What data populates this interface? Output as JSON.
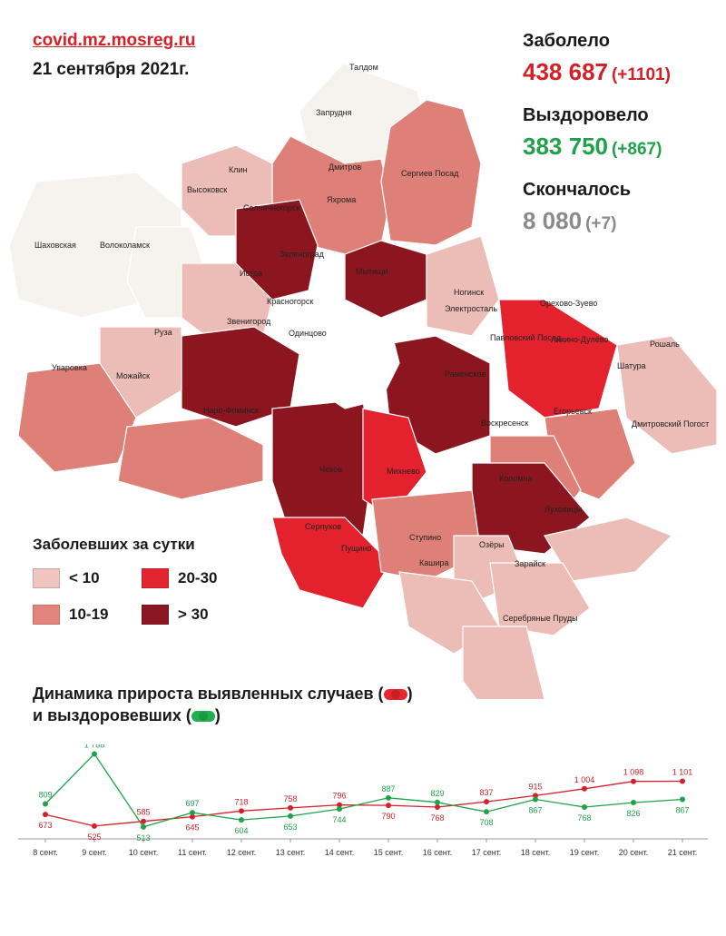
{
  "header": {
    "site": "covid.mz.mosreg.ru",
    "date": "21 сентября 2021г."
  },
  "stats": {
    "infected": {
      "label": "Заболело",
      "value": "438 687",
      "delta": "(+1101)",
      "color": "#d42027"
    },
    "recovered": {
      "label": "Выздоровело",
      "value": "383 750",
      "delta": "(+867)",
      "color": "#1fa24a"
    },
    "died": {
      "label": "Скончалось",
      "value": "8 080",
      "delta": "(+7)",
      "color": "#8a8a8a"
    }
  },
  "legend": {
    "title": "Заболевших за сутки",
    "items": [
      {
        "label": "< 10",
        "color": "#f0c4c1"
      },
      {
        "label": "20-30",
        "color": "#e2252f"
      },
      {
        "label": "10-19",
        "color": "#e2847c"
      },
      {
        "label": "> 30",
        "color": "#8a1721"
      }
    ]
  },
  "map": {
    "colors": {
      "none": "#f6f3ee",
      "low": "#ecbcb6",
      "mid": "#de8077",
      "high": "#e3222d",
      "top": "#8b1620",
      "moscow": "#ffffff"
    },
    "places": [
      "Талдом",
      "Запрудня",
      "Дмитров",
      "Сергиев Посад",
      "Клин",
      "Высоковск",
      "Яхрома",
      "Солнечногорск",
      "Шаховская",
      "Волоколамск",
      "Зеленоград",
      "Мытищи",
      "Истра",
      "Красногорск",
      "Ногинск",
      "Электросталь",
      "Орехово-Зуево",
      "Звенигород",
      "Руза",
      "Павловский Посад",
      "Ликино-Дулёво",
      "Рошаль",
      "Одинцово",
      "Уваровка",
      "Можайск",
      "Раменское",
      "Шатура",
      "Наро-Фоминск",
      "Егорьевск",
      "Воскресенск",
      "Дмитровский Погост",
      "Чехов",
      "Михнево",
      "Коломна",
      "Луховицы",
      "Серпухов",
      "Ступино",
      "Озёры",
      "Пущино",
      "Кашира",
      "Зарайск",
      "Серебряные Пруды"
    ]
  },
  "dynamics": {
    "title_line1": "Динамика прироста выявленных случаев (",
    "title_line1_end": ")",
    "title_line2": "и выздоровевших (",
    "title_line2_end": ")"
  },
  "chart_data": {
    "type": "line",
    "categories": [
      "8 сент.",
      "9 сент.",
      "10 сент.",
      "11 сент.",
      "12 сент.",
      "13 сент.",
      "14 сент.",
      "15 сент.",
      "16 сент.",
      "17 сент.",
      "18 сент.",
      "19 сент.",
      "20 сент.",
      "21 сент."
    ],
    "series": [
      {
        "key": "infected",
        "color": "#d42027",
        "values": [
          673,
          525,
          585,
          645,
          718,
          758,
          796,
          790,
          768,
          837,
          915,
          1004,
          1098,
          1101
        ],
        "labels": [
          "673",
          "525",
          "585",
          "645",
          "718",
          "758",
          "796",
          "790",
          "768",
          "837",
          "915",
          "1 004",
          "1 098",
          "1 101"
        ]
      },
      {
        "key": "recovered",
        "color": "#1fa24a",
        "values": [
          809,
          1788,
          513,
          697,
          604,
          653,
          744,
          887,
          829,
          708,
          867,
          768,
          826,
          867
        ],
        "labels": [
          "809",
          "1 788",
          "513",
          "697",
          "604",
          "653",
          "744",
          "887",
          "829",
          "708",
          "867",
          "768",
          "826",
          "867"
        ]
      }
    ]
  }
}
